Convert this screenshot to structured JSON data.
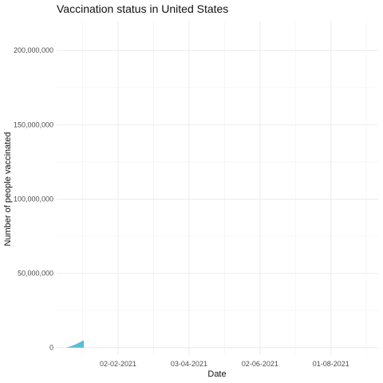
{
  "chart_data": {
    "type": "area",
    "title": "Vaccination status in United States",
    "xlabel": "Date",
    "ylabel": "Number of people vaccinated",
    "x_axis_kind": "date",
    "x_range": [
      "2020-12-12",
      "2021-09-10"
    ],
    "ylim": [
      -5000000,
      220000000
    ],
    "y_ticks": [
      0,
      50000000,
      100000000,
      150000000,
      200000000
    ],
    "y_tick_labels": [
      "0",
      "50,000,000",
      "100,000,000",
      "150,000,000",
      "200,000,000"
    ],
    "x_ticks": [
      "2021-02-02",
      "2021-04-03",
      "2021-06-02",
      "2021-08-01"
    ],
    "x_tick_labels": [
      "02-02-2021",
      "03-04-2021",
      "02-06-2021",
      "01-08-2021"
    ],
    "grid": true,
    "legend": "none",
    "fill_color": "#5bbcd6",
    "series": [
      {
        "x": [
          "2020-12-20",
          "2020-12-24",
          "2020-12-28",
          "2021-01-01",
          "2021-01-04"
        ],
        "values": [
          0,
          1000000,
          2200000,
          3800000,
          5000000
        ]
      }
    ]
  }
}
